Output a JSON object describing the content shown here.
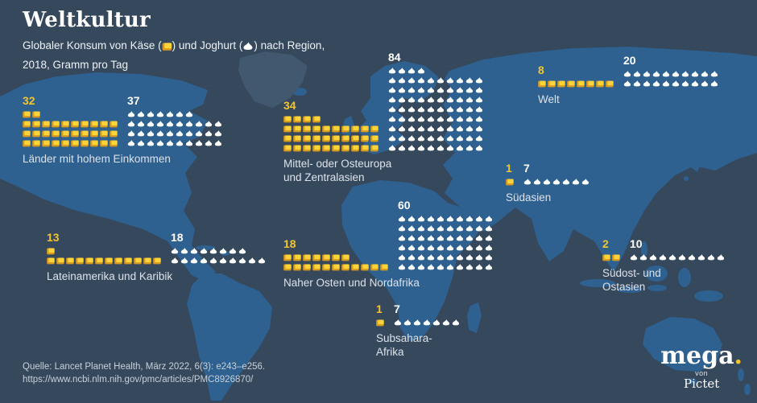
{
  "header": {
    "title": "Weltkultur",
    "subtitle_part1": "Globaler Konsum von Käse (",
    "subtitle_part2": ") und Joghurt (",
    "subtitle_part3": ") nach Region,",
    "subtitle_line2": "2018, Gramm pro Tag"
  },
  "chart_data": {
    "type": "pictogram",
    "title": "Weltkultur",
    "subtitle": "Globaler Konsum von Käse und Joghurt nach Region, 2018, Gramm pro Tag",
    "year": "2018",
    "unit": "Gramm pro Tag",
    "icon_unit": 1,
    "series": [
      "Käse",
      "Joghurt"
    ],
    "legend": {
      "cheese_icon": "yellow cheese cube",
      "yogurt_icon": "white yogurt dollop"
    },
    "regions": [
      {
        "id": "high-income",
        "label_lines": [
          "Länder mit hohem Einkommen"
        ],
        "cheese": 32,
        "yogurt": 37,
        "cheese_rows": [
          2,
          10,
          10,
          10
        ],
        "yogurt_rows": [
          7,
          10,
          10,
          10
        ]
      },
      {
        "id": "europe-central-asia",
        "label_lines": [
          "Mittel- oder Osteuropa",
          "und Zentralasien"
        ],
        "cheese": 34,
        "yogurt": 84,
        "cheese_rows": [
          4,
          10,
          10,
          10
        ],
        "yogurt_rows": [
          4,
          10,
          10,
          10,
          10,
          10,
          10,
          10,
          10
        ]
      },
      {
        "id": "world",
        "label_lines": [
          "Welt"
        ],
        "cheese": 8,
        "yogurt": 20,
        "cheese_rows": [
          8
        ],
        "yogurt_rows": [
          10,
          10
        ]
      },
      {
        "id": "south-asia",
        "label_lines": [
          "Südasien"
        ],
        "cheese": 1,
        "yogurt": 7,
        "cheese_rows": [
          1
        ],
        "yogurt_rows": [
          7
        ]
      },
      {
        "id": "latin-america",
        "label_lines": [
          "Lateinamerika und Karibik"
        ],
        "cheese": 13,
        "yogurt": 18,
        "cheese_rows": [
          1,
          12
        ],
        "yogurt_rows": [
          8,
          10
        ]
      },
      {
        "id": "mena",
        "label_lines": [
          "Naher Osten und Nordafrika"
        ],
        "cheese": 18,
        "yogurt": 60,
        "cheese_rows": [
          7,
          11
        ],
        "yogurt_rows": [
          10,
          10,
          10,
          10,
          10,
          10
        ]
      },
      {
        "id": "se-east-asia",
        "label_lines": [
          "Südost- und",
          "Ostasien"
        ],
        "cheese": 2,
        "yogurt": 10,
        "cheese_rows": [
          2
        ],
        "yogurt_rows": [
          10
        ]
      },
      {
        "id": "subsahara",
        "label_lines": [
          "Subsahara-",
          "Afrika"
        ],
        "cheese": 1,
        "yogurt": 7,
        "cheese_rows": [
          1
        ],
        "yogurt_rows": [
          7
        ]
      }
    ]
  },
  "footer": {
    "source_line1": "Quelle: Lancet Planet Health, März 2022, 6(3): e243–e256.",
    "source_line2": "https://www.ncbi.nlm.nih.gov/pmc/articles/PMC8926870/"
  },
  "logo": {
    "brand": "mega",
    "dot": ".",
    "von": "von",
    "company": "Pictet"
  },
  "colors": {
    "background": "#36485C",
    "land": "#2E6090",
    "land_dark": "#41586F",
    "cheese": "#FFD43B",
    "cheese_shadow": "#D89B1E",
    "yogurt": "#FFFFFF",
    "accent_yellow": "#F2C52F"
  }
}
